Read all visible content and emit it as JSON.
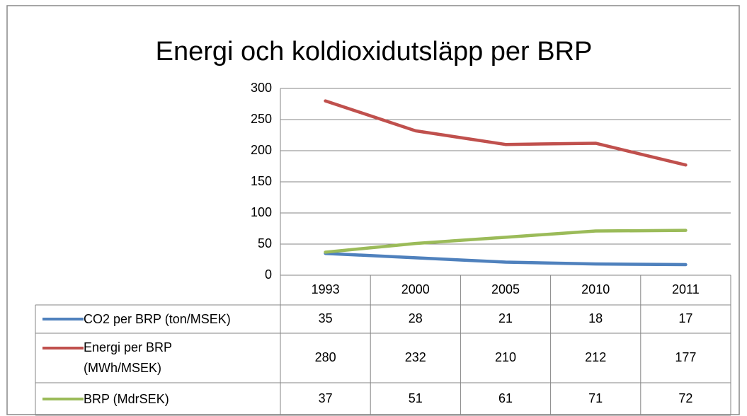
{
  "chart_data": {
    "type": "line",
    "title": "Energi och koldioxidutsläpp per BRP",
    "categories": [
      "1993",
      "2000",
      "2005",
      "2010",
      "2011"
    ],
    "series": [
      {
        "name": "CO2 per BRP (ton/MSEK)",
        "color": "#4f81bd",
        "values": [
          35,
          28,
          21,
          18,
          17
        ]
      },
      {
        "name": "Energi per BRP (MWh/MSEK)",
        "color": "#c0504d",
        "values": [
          280,
          232,
          210,
          212,
          177
        ]
      },
      {
        "name": "BRP (MdrSEK)",
        "color": "#9bbb59",
        "values": [
          37,
          51,
          61,
          71,
          72
        ]
      }
    ],
    "ylim": [
      0,
      300
    ],
    "yticks": [
      0,
      50,
      100,
      150,
      200,
      250,
      300
    ],
    "grid": true,
    "data_table": true
  }
}
